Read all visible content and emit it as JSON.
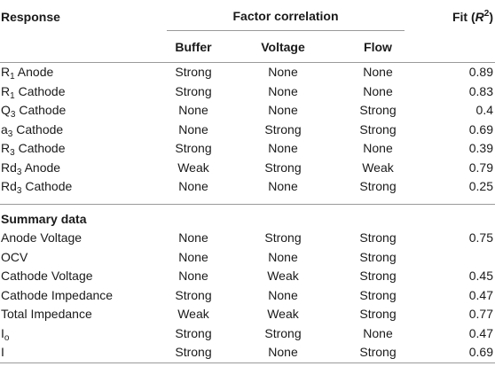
{
  "header": {
    "response": "Response",
    "factor_correlation": "Factor correlation",
    "fit_prefix": "Fit (",
    "fit_var": "R",
    "fit_sup": "2",
    "fit_suffix": ")",
    "buffer": "Buffer",
    "voltage": "Voltage",
    "flow": "Flow"
  },
  "rows": [
    {
      "name": "R",
      "sub": "1",
      "rest": " Anode",
      "buffer": "Strong",
      "voltage": "None",
      "flow": "None",
      "fit": "0.89"
    },
    {
      "name": "R",
      "sub": "1",
      "rest": " Cathode",
      "buffer": "Strong",
      "voltage": "None",
      "flow": "None",
      "fit": "0.83"
    },
    {
      "name": "Q",
      "sub": "3",
      "rest": " Cathode",
      "buffer": "None",
      "voltage": "None",
      "flow": "Strong",
      "fit": "0.4"
    },
    {
      "name": "a",
      "sub": "3",
      "rest": " Cathode",
      "buffer": "None",
      "voltage": "Strong",
      "flow": "Strong",
      "fit": "0.69"
    },
    {
      "name": "R",
      "sub": "3",
      "rest": " Cathode",
      "buffer": "Strong",
      "voltage": "None",
      "flow": "None",
      "fit": "0.39"
    },
    {
      "name": "Rd",
      "sub": "3",
      "rest": " Anode",
      "buffer": "Weak",
      "voltage": "Strong",
      "flow": "Weak",
      "fit": "0.79"
    },
    {
      "name": "Rd",
      "sub": "3",
      "rest": " Cathode",
      "buffer": "None",
      "voltage": "None",
      "flow": "Strong",
      "fit": "0.25"
    }
  ],
  "summary": {
    "title": "Summary data",
    "rows": [
      {
        "name": "Anode Voltage",
        "sub": "",
        "rest": "",
        "buffer": "None",
        "voltage": "Strong",
        "flow": "Strong",
        "fit": "0.75"
      },
      {
        "name": "OCV",
        "sub": "",
        "rest": "",
        "buffer": "None",
        "voltage": "None",
        "flow": "Strong",
        "fit": ""
      },
      {
        "name": "Cathode Voltage",
        "sub": "",
        "rest": "",
        "buffer": "None",
        "voltage": "Weak",
        "flow": "Strong",
        "fit": "0.45"
      },
      {
        "name": "Cathode Impedance",
        "sub": "",
        "rest": "",
        "buffer": "Strong",
        "voltage": "None",
        "flow": "Strong",
        "fit": "0.47"
      },
      {
        "name": "Total Impedance",
        "sub": "",
        "rest": "",
        "buffer": "Weak",
        "voltage": "Weak",
        "flow": "Strong",
        "fit": "0.77"
      },
      {
        "name": "I",
        "sub": "o",
        "rest": "",
        "buffer": "Strong",
        "voltage": "Strong",
        "flow": "None",
        "fit": "0.47"
      },
      {
        "name": "I",
        "sub": "",
        "rest": "",
        "buffer": "Strong",
        "voltage": "None",
        "flow": "Strong",
        "fit": "0.69"
      }
    ]
  }
}
